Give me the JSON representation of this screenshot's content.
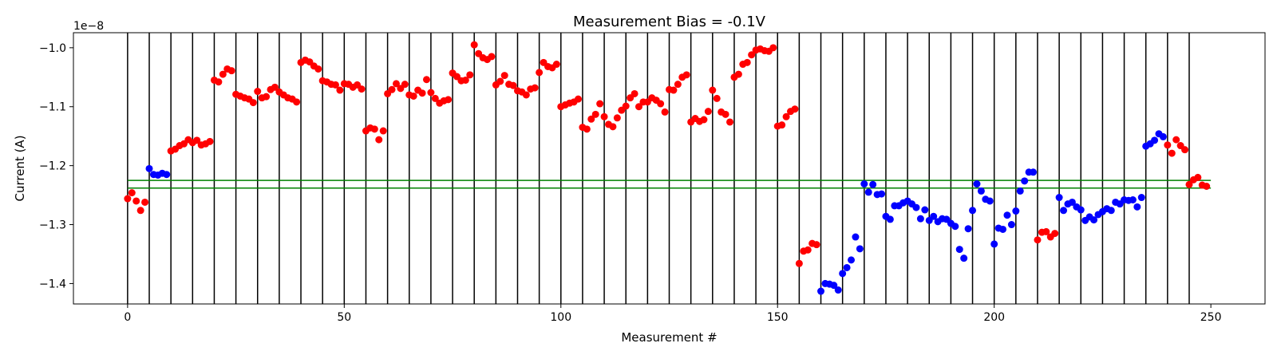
{
  "chart_data": {
    "type": "scatter",
    "title": "Measurement Bias = -0.1V",
    "xlabel": "Measurement #",
    "ylabel": "Current (A)",
    "y_offset_label": "1e−8",
    "xlim": [
      -12.5,
      262.5
    ],
    "ylim": [
      -1.4346,
      -0.9745
    ],
    "xticks": [
      0,
      50,
      100,
      150,
      200,
      250
    ],
    "yticks": [
      -1.4,
      -1.3,
      -1.2,
      -1.1,
      -1.0
    ],
    "ytick_labels": [
      "−1.4",
      "−1.3",
      "−1.2",
      "−1.1",
      "−1.0"
    ],
    "grid": false,
    "vlines_x": [
      0,
      5,
      10,
      15,
      20,
      25,
      30,
      35,
      40,
      45,
      50,
      55,
      60,
      65,
      70,
      75,
      80,
      85,
      90,
      95,
      100,
      105,
      110,
      115,
      120,
      125,
      130,
      135,
      140,
      145,
      150,
      155,
      160,
      165,
      170,
      175,
      180,
      185,
      190,
      195,
      200,
      205,
      210,
      215,
      220,
      225,
      230,
      235,
      240,
      245
    ],
    "vline_color": "#000000",
    "hlines": [
      {
        "y": -1.225,
        "x_range": [
          0,
          250
        ],
        "color": "#008000"
      },
      {
        "y": -1.238,
        "x_range": [
          0,
          250
        ],
        "color": "#008000"
      }
    ],
    "series": [
      {
        "color": "#ff0000",
        "points": [
          [
            0,
            -1.256
          ],
          [
            1,
            -1.246
          ],
          [
            2,
            -1.26
          ],
          [
            3,
            -1.276
          ],
          [
            4,
            -1.262
          ],
          [
            10,
            -1.175
          ],
          [
            11,
            -1.172
          ],
          [
            12,
            -1.166
          ],
          [
            13,
            -1.163
          ],
          [
            14,
            -1.156
          ],
          [
            15,
            -1.161
          ],
          [
            16,
            -1.157
          ],
          [
            17,
            -1.165
          ],
          [
            18,
            -1.163
          ],
          [
            19,
            -1.159
          ],
          [
            20,
            -1.055
          ],
          [
            21,
            -1.058
          ],
          [
            22,
            -1.045
          ],
          [
            23,
            -1.036
          ],
          [
            24,
            -1.039
          ],
          [
            25,
            -1.079
          ],
          [
            26,
            -1.082
          ],
          [
            27,
            -1.085
          ],
          [
            28,
            -1.087
          ],
          [
            29,
            -1.093
          ],
          [
            30,
            -1.074
          ],
          [
            31,
            -1.085
          ],
          [
            32,
            -1.083
          ],
          [
            33,
            -1.071
          ],
          [
            34,
            -1.067
          ],
          [
            35,
            -1.075
          ],
          [
            36,
            -1.08
          ],
          [
            37,
            -1.085
          ],
          [
            38,
            -1.087
          ],
          [
            39,
            -1.092
          ],
          [
            40,
            -1.025
          ],
          [
            41,
            -1.021
          ],
          [
            42,
            -1.024
          ],
          [
            43,
            -1.031
          ],
          [
            44,
            -1.036
          ],
          [
            45,
            -1.056
          ],
          [
            46,
            -1.058
          ],
          [
            47,
            -1.062
          ],
          [
            48,
            -1.063
          ],
          [
            49,
            -1.072
          ],
          [
            50,
            -1.061
          ],
          [
            51,
            -1.062
          ],
          [
            52,
            -1.067
          ],
          [
            53,
            -1.063
          ],
          [
            54,
            -1.07
          ],
          [
            55,
            -1.141
          ],
          [
            56,
            -1.136
          ],
          [
            57,
            -1.138
          ],
          [
            58,
            -1.156
          ],
          [
            59,
            -1.141
          ],
          [
            60,
            -1.078
          ],
          [
            61,
            -1.071
          ],
          [
            62,
            -1.061
          ],
          [
            63,
            -1.069
          ],
          [
            64,
            -1.062
          ],
          [
            65,
            -1.08
          ],
          [
            66,
            -1.082
          ],
          [
            67,
            -1.072
          ],
          [
            68,
            -1.077
          ],
          [
            69,
            -1.054
          ],
          [
            70,
            -1.076
          ],
          [
            71,
            -1.086
          ],
          [
            72,
            -1.094
          ],
          [
            73,
            -1.09
          ],
          [
            74,
            -1.088
          ],
          [
            75,
            -1.043
          ],
          [
            76,
            -1.049
          ],
          [
            77,
            -1.056
          ],
          [
            78,
            -1.055
          ],
          [
            79,
            -1.046
          ],
          [
            80,
            -0.995
          ],
          [
            81,
            -1.01
          ],
          [
            82,
            -1.017
          ],
          [
            83,
            -1.02
          ],
          [
            84,
            -1.015
          ],
          [
            85,
            -1.063
          ],
          [
            86,
            -1.057
          ],
          [
            87,
            -1.047
          ],
          [
            88,
            -1.062
          ],
          [
            89,
            -1.064
          ],
          [
            90,
            -1.073
          ],
          [
            91,
            -1.075
          ],
          [
            92,
            -1.08
          ],
          [
            93,
            -1.07
          ],
          [
            94,
            -1.068
          ],
          [
            95,
            -1.042
          ],
          [
            96,
            -1.025
          ],
          [
            97,
            -1.032
          ],
          [
            98,
            -1.034
          ],
          [
            99,
            -1.028
          ],
          [
            100,
            -1.1
          ],
          [
            101,
            -1.097
          ],
          [
            102,
            -1.094
          ],
          [
            103,
            -1.092
          ],
          [
            104,
            -1.087
          ],
          [
            105,
            -1.135
          ],
          [
            106,
            -1.138
          ],
          [
            107,
            -1.121
          ],
          [
            108,
            -1.113
          ],
          [
            109,
            -1.095
          ],
          [
            110,
            -1.117
          ],
          [
            111,
            -1.13
          ],
          [
            112,
            -1.134
          ],
          [
            113,
            -1.119
          ],
          [
            114,
            -1.106
          ],
          [
            115,
            -1.099
          ],
          [
            116,
            -1.085
          ],
          [
            117,
            -1.078
          ],
          [
            118,
            -1.1
          ],
          [
            119,
            -1.092
          ],
          [
            120,
            -1.092
          ],
          [
            121,
            -1.085
          ],
          [
            122,
            -1.089
          ],
          [
            123,
            -1.095
          ],
          [
            124,
            -1.109
          ],
          [
            125,
            -1.071
          ],
          [
            126,
            -1.072
          ],
          [
            127,
            -1.062
          ],
          [
            128,
            -1.05
          ],
          [
            129,
            -1.046
          ],
          [
            130,
            -1.126
          ],
          [
            131,
            -1.12
          ],
          [
            132,
            -1.125
          ],
          [
            133,
            -1.122
          ],
          [
            134,
            -1.108
          ],
          [
            135,
            -1.072
          ],
          [
            136,
            -1.086
          ],
          [
            137,
            -1.109
          ],
          [
            138,
            -1.113
          ],
          [
            139,
            -1.126
          ],
          [
            140,
            -1.05
          ],
          [
            141,
            -1.045
          ],
          [
            142,
            -1.028
          ],
          [
            143,
            -1.025
          ],
          [
            144,
            -1.012
          ],
          [
            145,
            -1.004
          ],
          [
            146,
            -1.002
          ],
          [
            147,
            -1.005
          ],
          [
            148,
            -1.006
          ],
          [
            149,
            -1.0
          ],
          [
            150,
            -1.133
          ],
          [
            151,
            -1.131
          ],
          [
            152,
            -1.117
          ],
          [
            153,
            -1.108
          ],
          [
            154,
            -1.104
          ],
          [
            155,
            -1.366
          ],
          [
            156,
            -1.345
          ],
          [
            157,
            -1.343
          ],
          [
            158,
            -1.332
          ],
          [
            159,
            -1.334
          ],
          [
            210,
            -1.326
          ],
          [
            211,
            -1.313
          ],
          [
            212,
            -1.312
          ],
          [
            213,
            -1.321
          ],
          [
            214,
            -1.315
          ],
          [
            240,
            -1.165
          ],
          [
            241,
            -1.179
          ],
          [
            242,
            -1.156
          ],
          [
            243,
            -1.166
          ],
          [
            244,
            -1.173
          ],
          [
            245,
            -1.232
          ],
          [
            246,
            -1.224
          ],
          [
            247,
            -1.22
          ],
          [
            248,
            -1.233
          ],
          [
            249,
            -1.235
          ]
        ]
      },
      {
        "color": "#0000ff",
        "points": [
          [
            5,
            -1.205
          ],
          [
            6,
            -1.215
          ],
          [
            7,
            -1.216
          ],
          [
            8,
            -1.213
          ],
          [
            9,
            -1.215
          ],
          [
            160,
            -1.413
          ],
          [
            161,
            -1.4
          ],
          [
            162,
            -1.401
          ],
          [
            163,
            -1.403
          ],
          [
            164,
            -1.411
          ],
          [
            165,
            -1.383
          ],
          [
            166,
            -1.373
          ],
          [
            167,
            -1.36
          ],
          [
            168,
            -1.321
          ],
          [
            169,
            -1.341
          ],
          [
            170,
            -1.231
          ],
          [
            171,
            -1.245
          ],
          [
            172,
            -1.232
          ],
          [
            173,
            -1.249
          ],
          [
            174,
            -1.248
          ],
          [
            175,
            -1.286
          ],
          [
            176,
            -1.291
          ],
          [
            177,
            -1.268
          ],
          [
            178,
            -1.268
          ],
          [
            179,
            -1.263
          ],
          [
            180,
            -1.26
          ],
          [
            181,
            -1.265
          ],
          [
            182,
            -1.271
          ],
          [
            183,
            -1.29
          ],
          [
            184,
            -1.275
          ],
          [
            185,
            -1.293
          ],
          [
            186,
            -1.286
          ],
          [
            187,
            -1.295
          ],
          [
            188,
            -1.29
          ],
          [
            189,
            -1.291
          ],
          [
            190,
            -1.298
          ],
          [
            191,
            -1.303
          ],
          [
            192,
            -1.342
          ],
          [
            193,
            -1.357
          ],
          [
            194,
            -1.307
          ],
          [
            195,
            -1.276
          ],
          [
            196,
            -1.231
          ],
          [
            197,
            -1.243
          ],
          [
            198,
            -1.257
          ],
          [
            199,
            -1.26
          ],
          [
            200,
            -1.333
          ],
          [
            201,
            -1.306
          ],
          [
            202,
            -1.308
          ],
          [
            203,
            -1.284
          ],
          [
            204,
            -1.3
          ],
          [
            205,
            -1.277
          ],
          [
            206,
            -1.243
          ],
          [
            207,
            -1.226
          ],
          [
            208,
            -1.211
          ],
          [
            209,
            -1.211
          ],
          [
            215,
            -1.254
          ],
          [
            216,
            -1.276
          ],
          [
            217,
            -1.265
          ],
          [
            218,
            -1.262
          ],
          [
            219,
            -1.27
          ],
          [
            220,
            -1.275
          ],
          [
            221,
            -1.293
          ],
          [
            222,
            -1.287
          ],
          [
            223,
            -1.292
          ],
          [
            224,
            -1.283
          ],
          [
            225,
            -1.278
          ],
          [
            226,
            -1.273
          ],
          [
            227,
            -1.276
          ],
          [
            228,
            -1.262
          ],
          [
            229,
            -1.265
          ],
          [
            230,
            -1.258
          ],
          [
            231,
            -1.259
          ],
          [
            232,
            -1.258
          ],
          [
            233,
            -1.27
          ],
          [
            234,
            -1.254
          ],
          [
            235,
            -1.167
          ],
          [
            236,
            -1.163
          ],
          [
            237,
            -1.157
          ],
          [
            238,
            -1.146
          ],
          [
            239,
            -1.151
          ]
        ]
      }
    ]
  }
}
